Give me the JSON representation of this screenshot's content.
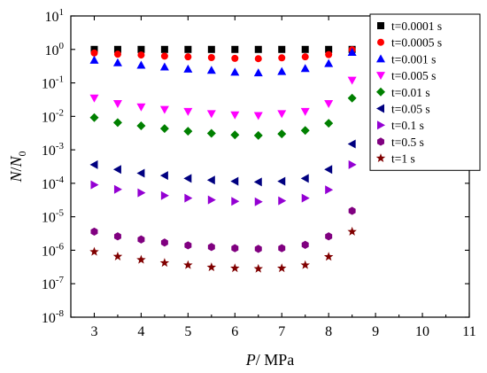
{
  "chart_data": {
    "type": "scatter",
    "title": "",
    "xlabel": {
      "var": "P",
      "unit": "/ MPa"
    },
    "ylabel": {
      "var": "N",
      "sep": "/",
      "var2": "N",
      "sub": "0"
    },
    "xlim": [
      2.5,
      11
    ],
    "ylim_log10": [
      -8,
      1
    ],
    "y_scale": "log",
    "x_ticks": [
      3,
      4,
      5,
      6,
      7,
      8,
      9,
      10,
      11
    ],
    "y_tick_exponents": [
      -8,
      -7,
      -6,
      -5,
      -4,
      -3,
      -2,
      -1,
      0,
      1
    ],
    "y_tick_base": "10",
    "legend_position": "top-right",
    "grid": false,
    "x": [
      3,
      3.5,
      4,
      4.5,
      5,
      5.5,
      6,
      6.5,
      7,
      7.5,
      8,
      8.5
    ],
    "series": [
      {
        "name": "t=0.0001 s",
        "marker": "square",
        "color": "#000000",
        "values": [
          1.0,
          1.0,
          1.0,
          1.0,
          1.0,
          1.0,
          1.0,
          1.0,
          1.0,
          1.0,
          1.0,
          1.0
        ]
      },
      {
        "name": "t=0.0005 s",
        "marker": "circle",
        "color": "#ff0000",
        "values": [
          0.78,
          0.72,
          0.68,
          0.63,
          0.6,
          0.57,
          0.54,
          0.53,
          0.56,
          0.6,
          0.7,
          0.98
        ]
      },
      {
        "name": "t=0.001 s",
        "marker": "triangle-up",
        "color": "#0000ff",
        "values": [
          0.48,
          0.4,
          0.34,
          0.3,
          0.26,
          0.24,
          0.21,
          0.2,
          0.22,
          0.27,
          0.38,
          0.82
        ]
      },
      {
        "name": "t=0.005 s",
        "marker": "triangle-down",
        "color": "#ff00ff",
        "values": [
          0.035,
          0.024,
          0.019,
          0.016,
          0.014,
          0.012,
          0.011,
          0.0105,
          0.012,
          0.014,
          0.024,
          0.12
        ]
      },
      {
        "name": "t=0.01 s",
        "marker": "diamond",
        "color": "#008000",
        "values": [
          0.0092,
          0.0065,
          0.0052,
          0.0043,
          0.0036,
          0.0031,
          0.0028,
          0.0027,
          0.003,
          0.0038,
          0.0062,
          0.035
        ]
      },
      {
        "name": "t=0.05 s",
        "marker": "triangle-left",
        "color": "#000080",
        "values": [
          0.00036,
          0.00026,
          0.0002,
          0.00017,
          0.00014,
          0.000125,
          0.000115,
          0.00011,
          0.000115,
          0.00014,
          0.00026,
          0.0015
        ]
      },
      {
        "name": "t=0.1 s",
        "marker": "triangle-right",
        "color": "#9400d3",
        "values": [
          9e-05,
          6.6e-05,
          5.2e-05,
          4.3e-05,
          3.6e-05,
          3.2e-05,
          2.9e-05,
          2.8e-05,
          3e-05,
          3.6e-05,
          6.4e-05,
          0.00036
        ]
      },
      {
        "name": "t=0.5 s",
        "marker": "hexagon",
        "color": "#800080",
        "values": [
          3.6e-06,
          2.6e-06,
          2.1e-06,
          1.7e-06,
          1.4e-06,
          1.25e-06,
          1.15e-06,
          1.1e-06,
          1.15e-06,
          1.45e-06,
          2.6e-06,
          1.5e-05
        ]
      },
      {
        "name": "t=1 s",
        "marker": "star",
        "color": "#800000",
        "values": [
          9e-07,
          6.5e-07,
          5.2e-07,
          4.2e-07,
          3.6e-07,
          3.1e-07,
          2.9e-07,
          2.8e-07,
          2.9e-07,
          3.6e-07,
          6.4e-07,
          3.6e-06
        ]
      }
    ]
  }
}
